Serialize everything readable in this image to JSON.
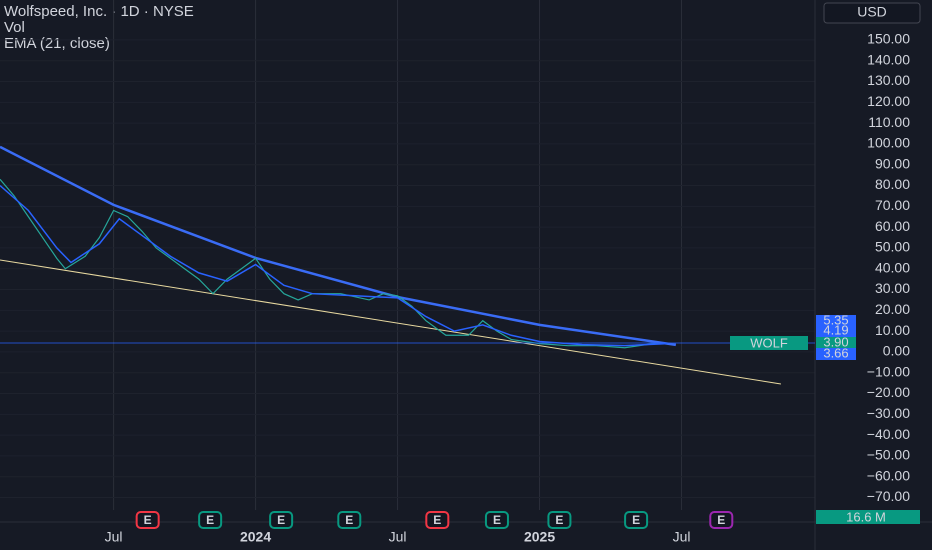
{
  "chart_data": {
    "type": "line",
    "title": "Wolfspeed, Inc. · 1D · NYSE",
    "legend_items": [
      "Vol",
      "EMA (21, close)"
    ],
    "currency": "USD",
    "xlim": [
      2023.1,
      2025.97
    ],
    "ylim": [
      -76,
      169.2
    ],
    "xticks": [
      {
        "value": 2023.5,
        "label": "Jul"
      },
      {
        "value": 2024.0,
        "label": "2024"
      },
      {
        "value": 2024.5,
        "label": "Jul"
      },
      {
        "value": 2025.0,
        "label": "2025"
      },
      {
        "value": 2025.5,
        "label": "Jul"
      }
    ],
    "yticks": [
      {
        "value": 150,
        "label": "150.00"
      },
      {
        "value": 140,
        "label": "140.00"
      },
      {
        "value": 130,
        "label": "130.00"
      },
      {
        "value": 120,
        "label": "120.00"
      },
      {
        "value": 110,
        "label": "110.00"
      },
      {
        "value": 100,
        "label": "100.00"
      },
      {
        "value": 90,
        "label": "90.00"
      },
      {
        "value": 80,
        "label": "80.00"
      },
      {
        "value": 70,
        "label": "70.00"
      },
      {
        "value": 60,
        "label": "60.00"
      },
      {
        "value": 50,
        "label": "50.00"
      },
      {
        "value": 40,
        "label": "40.00"
      },
      {
        "value": 30,
        "label": "30.00"
      },
      {
        "value": 20,
        "label": "20.00"
      },
      {
        "value": 10,
        "label": "10.00"
      },
      {
        "value": 0,
        "label": "0.00"
      },
      {
        "value": -10,
        "label": "−10.00"
      },
      {
        "value": -20,
        "label": "−20.00"
      },
      {
        "value": -30,
        "label": "−30.00"
      },
      {
        "value": -40,
        "label": "−40.00"
      },
      {
        "value": -50,
        "label": "−50.00"
      },
      {
        "value": -60,
        "label": "−60.00"
      },
      {
        "value": -70,
        "label": "−70.00"
      }
    ],
    "series": [
      {
        "name": "WOLF",
        "color": "#26a69a",
        "x": [
          2023.1,
          2023.15,
          2023.2,
          2023.25,
          2023.3,
          2023.33,
          2023.4,
          2023.45,
          2023.5,
          2023.55,
          2023.6,
          2023.65,
          2023.7,
          2023.75,
          2023.8,
          2023.85,
          2023.9,
          2023.95,
          2024.0,
          2024.05,
          2024.1,
          2024.15,
          2024.2,
          2024.3,
          2024.4,
          2024.45,
          2024.5,
          2024.55,
          2024.6,
          2024.67,
          2024.75,
          2024.8,
          2024.85,
          2024.9,
          2025.0,
          2025.1,
          2025.2,
          2025.3,
          2025.4,
          2025.45
        ],
        "values": [
          83,
          75,
          65,
          55,
          45,
          40,
          46,
          55,
          68,
          65,
          58,
          50,
          45,
          40,
          35,
          28,
          35,
          40,
          45,
          35,
          28,
          25,
          28,
          28,
          25,
          28,
          27,
          22,
          15,
          8,
          8,
          15,
          10,
          6,
          4,
          3,
          3,
          2,
          4,
          4
        ]
      },
      {
        "name": "EMA (21, close)",
        "color": "#2962ff",
        "x": [
          2023.1,
          2023.2,
          2023.3,
          2023.35,
          2023.45,
          2023.52,
          2023.6,
          2023.7,
          2023.8,
          2023.9,
          2024.0,
          2024.1,
          2024.2,
          2024.35,
          2024.5,
          2024.6,
          2024.7,
          2024.8,
          2024.9,
          2025.0,
          2025.15,
          2025.3,
          2025.45
        ],
        "values": [
          80,
          68,
          50,
          43,
          52,
          64,
          56,
          46,
          38,
          34,
          42,
          32,
          28,
          27,
          26,
          17,
          10,
          13,
          8,
          5,
          3.5,
          3,
          4
        ]
      }
    ],
    "trendlines": [
      {
        "color": "#3a6cf5",
        "x": [
          2023.1,
          2023.5,
          2024.0,
          2024.5,
          2025.0,
          2025.48
        ],
        "values": [
          98.6,
          70.7,
          45.2,
          26.4,
          13,
          3.4
        ]
      },
      {
        "color": "#e8d9a0",
        "x": [
          2023.1,
          2025.85
        ],
        "values": [
          44.2,
          -15.4
        ]
      }
    ],
    "events": [
      {
        "x": 2023.62,
        "label": "E",
        "color": "#f23645"
      },
      {
        "x": 2023.84,
        "label": "E",
        "color": "#089981"
      },
      {
        "x": 2024.09,
        "label": "E",
        "color": "#089981"
      },
      {
        "x": 2024.33,
        "label": "E",
        "color": "#089981"
      },
      {
        "x": 2024.64,
        "label": "E",
        "color": "#f23645"
      },
      {
        "x": 2024.85,
        "label": "E",
        "color": "#089981"
      },
      {
        "x": 2025.07,
        "label": "E",
        "color": "#089981"
      },
      {
        "x": 2025.34,
        "label": "E",
        "color": "#089981"
      },
      {
        "x": 2025.64,
        "label": "E",
        "color": "#9c27b0"
      }
    ],
    "price_badges": [
      5.35,
      4.19,
      {
        "value": 3.9,
        "label": "3.90"
      },
      3.66
    ],
    "symbol_badge": "WOLF",
    "volume_badge": "16.6 M"
  }
}
